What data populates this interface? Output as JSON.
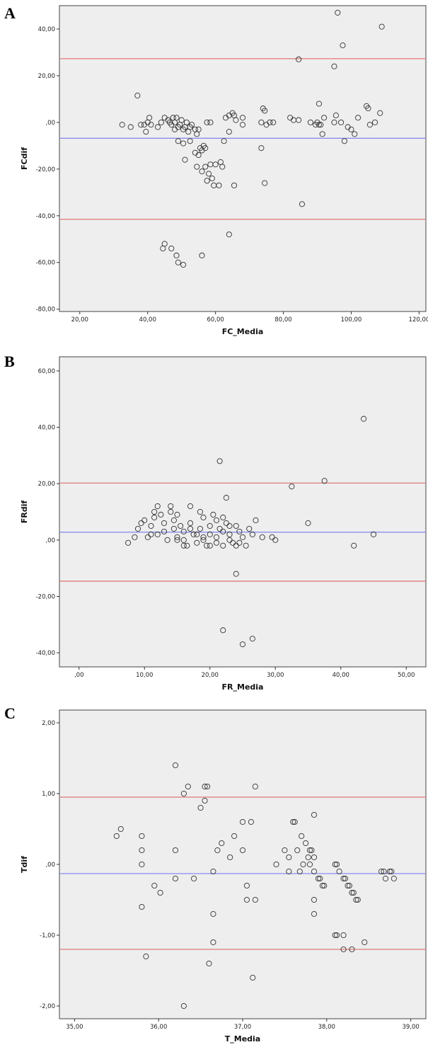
{
  "chart_data": [
    {
      "type": "scatter",
      "panel_label": "A",
      "xlabel": "FC_Media",
      "ylabel": "FCdif",
      "xlim": [
        14,
        122
      ],
      "ylim": [
        -81,
        50
      ],
      "x_ticks": [
        "20,00",
        "40,00",
        "60,00",
        "80,00",
        "100,00",
        "120,00"
      ],
      "y_ticks": [
        "40,00",
        "20,00",
        ",00",
        "-20,00",
        "-40,00",
        "-60,00",
        "-80,00"
      ],
      "x_tick_values": [
        20,
        40,
        60,
        80,
        100,
        120
      ],
      "y_tick_values": [
        40,
        20,
        0,
        -20,
        -40,
        -60,
        -80
      ],
      "reference_lines": [
        {
          "value": 27.3,
          "color": "#e07a7a"
        },
        {
          "value": -6.8,
          "color": "#8c8cf0"
        },
        {
          "value": -41.5,
          "color": "#e07a7a"
        }
      ],
      "points": [
        [
          32.5,
          -1
        ],
        [
          35,
          -2
        ],
        [
          37,
          11.5
        ],
        [
          38,
          -1
        ],
        [
          39,
          -1
        ],
        [
          39.5,
          -4
        ],
        [
          40,
          0
        ],
        [
          40.5,
          2
        ],
        [
          41,
          -1
        ],
        [
          43,
          -2
        ],
        [
          44,
          0
        ],
        [
          45,
          2
        ],
        [
          46,
          1
        ],
        [
          46.5,
          0
        ],
        [
          47,
          -1
        ],
        [
          47.5,
          2
        ],
        [
          48,
          0
        ],
        [
          48,
          -3
        ],
        [
          48.5,
          2
        ],
        [
          49,
          -2
        ],
        [
          49.5,
          -1
        ],
        [
          50,
          1
        ],
        [
          50.5,
          -3
        ],
        [
          51,
          -2
        ],
        [
          51.5,
          0
        ],
        [
          52,
          -4
        ],
        [
          52.5,
          -2
        ],
        [
          53,
          -1
        ],
        [
          54,
          -3
        ],
        [
          54.5,
          -5
        ],
        [
          55,
          -3
        ],
        [
          49,
          -8
        ],
        [
          50.5,
          -9
        ],
        [
          52.5,
          -8
        ],
        [
          51,
          -16
        ],
        [
          54,
          -13
        ],
        [
          54.5,
          -19
        ],
        [
          55,
          -14
        ],
        [
          55.5,
          -11
        ],
        [
          56,
          -12
        ],
        [
          56.5,
          -10
        ],
        [
          57,
          -11
        ],
        [
          56,
          -21
        ],
        [
          57,
          -19
        ],
        [
          57.5,
          -25
        ],
        [
          58,
          -22
        ],
        [
          58.5,
          -18
        ],
        [
          59,
          -24
        ],
        [
          59.5,
          -27
        ],
        [
          60,
          -18
        ],
        [
          61,
          -27
        ],
        [
          61.5,
          -17
        ],
        [
          62,
          -19
        ],
        [
          62.5,
          -8
        ],
        [
          57.5,
          0
        ],
        [
          58.5,
          0
        ],
        [
          63,
          2
        ],
        [
          64,
          3
        ],
        [
          64,
          -4
        ],
        [
          65,
          4
        ],
        [
          65.5,
          3
        ],
        [
          66,
          1
        ],
        [
          68,
          2
        ],
        [
          68,
          -1
        ],
        [
          73.5,
          0
        ],
        [
          73.5,
          -11
        ],
        [
          74,
          6
        ],
        [
          74.5,
          5
        ],
        [
          74.5,
          -26
        ],
        [
          75,
          -1
        ],
        [
          76,
          0
        ],
        [
          77,
          0
        ],
        [
          64,
          -48
        ],
        [
          65.5,
          -27
        ],
        [
          44.5,
          -54
        ],
        [
          45,
          -52
        ],
        [
          47,
          -54
        ],
        [
          48.5,
          -57
        ],
        [
          49,
          -60
        ],
        [
          50.5,
          -61
        ],
        [
          56,
          -57
        ],
        [
          82,
          2
        ],
        [
          83,
          1
        ],
        [
          84.5,
          1
        ],
        [
          84.5,
          27
        ],
        [
          85.5,
          -35
        ],
        [
          88,
          0
        ],
        [
          89.5,
          -1
        ],
        [
          90,
          0
        ],
        [
          90.5,
          -1
        ],
        [
          90.5,
          8
        ],
        [
          91,
          -1
        ],
        [
          91.5,
          -5
        ],
        [
          92,
          2
        ],
        [
          95,
          0
        ],
        [
          95,
          24
        ],
        [
          95.5,
          3
        ],
        [
          96,
          47
        ],
        [
          97,
          0
        ],
        [
          97.5,
          33
        ],
        [
          98,
          -8
        ],
        [
          99,
          -2
        ],
        [
          100,
          -3
        ],
        [
          101,
          -5
        ],
        [
          102,
          2
        ],
        [
          104.5,
          7
        ],
        [
          105,
          6
        ],
        [
          105.5,
          -1
        ],
        [
          107,
          0
        ],
        [
          108.5,
          4
        ],
        [
          109,
          41
        ]
      ]
    },
    {
      "type": "scatter",
      "panel_label": "B",
      "xlabel": "FR_Media",
      "ylabel": "FRdif",
      "xlim": [
        -3,
        53
      ],
      "ylim": [
        -45,
        65
      ],
      "x_ticks": [
        ",00",
        "10,00",
        "20,00",
        "30,00",
        "40,00",
        "50,00"
      ],
      "y_ticks": [
        "60,00",
        "40,00",
        "20,00",
        ",00",
        "-20,00",
        "-40,00"
      ],
      "x_tick_values": [
        0,
        10,
        20,
        30,
        40,
        50
      ],
      "y_tick_values": [
        60,
        40,
        20,
        0,
        -20,
        -40
      ],
      "reference_lines": [
        {
          "value": 20.2,
          "color": "#e07a7a"
        },
        {
          "value": 2.8,
          "color": "#8c8cf0"
        },
        {
          "value": -14.6,
          "color": "#e07a7a"
        }
      ],
      "points": [
        [
          7.5,
          -1
        ],
        [
          8.5,
          1
        ],
        [
          9,
          4
        ],
        [
          9.5,
          6
        ],
        [
          10,
          7
        ],
        [
          10.5,
          1
        ],
        [
          11,
          2
        ],
        [
          11,
          5
        ],
        [
          11.5,
          8
        ],
        [
          11.5,
          10
        ],
        [
          12,
          12
        ],
        [
          12,
          2
        ],
        [
          12.5,
          9
        ],
        [
          13,
          6
        ],
        [
          13,
          3
        ],
        [
          13.5,
          0
        ],
        [
          14,
          12
        ],
        [
          14,
          10
        ],
        [
          14.5,
          7
        ],
        [
          14.5,
          4
        ],
        [
          15,
          9
        ],
        [
          15,
          1
        ],
        [
          15.5,
          5
        ],
        [
          16,
          3
        ],
        [
          16,
          0
        ],
        [
          16.5,
          -2
        ],
        [
          17,
          12
        ],
        [
          17,
          6
        ],
        [
          17.5,
          2
        ],
        [
          18,
          -1
        ],
        [
          18.5,
          10
        ],
        [
          18.5,
          4
        ],
        [
          19,
          8
        ],
        [
          19,
          1
        ],
        [
          19.5,
          -2
        ],
        [
          20,
          5
        ],
        [
          20,
          2
        ],
        [
          20.5,
          9
        ],
        [
          21,
          7
        ],
        [
          21,
          -1
        ],
        [
          21.5,
          4
        ],
        [
          22,
          3
        ],
        [
          22,
          -2
        ],
        [
          22.5,
          6
        ],
        [
          23,
          2
        ],
        [
          23,
          0
        ],
        [
          23.5,
          -1
        ],
        [
          24,
          5
        ],
        [
          24.5,
          3
        ],
        [
          25,
          1
        ],
        [
          25.5,
          -2
        ],
        [
          26,
          4
        ],
        [
          26.5,
          2
        ],
        [
          27,
          7
        ],
        [
          28,
          1
        ],
        [
          15,
          0
        ],
        [
          16,
          -2
        ],
        [
          17,
          4
        ],
        [
          18,
          2
        ],
        [
          19,
          0
        ],
        [
          20,
          -2
        ],
        [
          21,
          1
        ],
        [
          22,
          8
        ],
        [
          23,
          5
        ],
        [
          24,
          -2
        ],
        [
          24.5,
          -1
        ],
        [
          21.5,
          28
        ],
        [
          22.5,
          15
        ],
        [
          24,
          -12
        ],
        [
          22,
          -32
        ],
        [
          25,
          -37
        ],
        [
          26.5,
          -35
        ],
        [
          29.5,
          1
        ],
        [
          30,
          0
        ],
        [
          32.5,
          19
        ],
        [
          35,
          6
        ],
        [
          37.5,
          21
        ],
        [
          42,
          -2
        ],
        [
          43.5,
          43
        ],
        [
          45,
          2
        ]
      ]
    },
    {
      "type": "scatter",
      "panel_label": "C",
      "xlabel": "T_Media",
      "ylabel": "Tdif",
      "xlim": [
        34.82,
        39.18
      ],
      "ylim": [
        -2.18,
        2.18
      ],
      "x_ticks": [
        "35,00",
        "36,00",
        "37,00",
        "38,00",
        "39,00"
      ],
      "y_ticks": [
        "2,00",
        "1,00",
        ",00",
        "-1,00",
        "-2,00"
      ],
      "x_tick_values": [
        35,
        36,
        37,
        38,
        39
      ],
      "y_tick_values": [
        2,
        1,
        0,
        -1,
        -2
      ],
      "reference_lines": [
        {
          "value": 0.95,
          "color": "#e07a7a"
        },
        {
          "value": -0.13,
          "color": "#8c8cf0"
        },
        {
          "value": -1.2,
          "color": "#e07a7a"
        }
      ],
      "points": [
        [
          35.5,
          0.4
        ],
        [
          35.55,
          0.5
        ],
        [
          35.8,
          0.4
        ],
        [
          35.8,
          0.2
        ],
        [
          35.8,
          0
        ],
        [
          35.8,
          -0.6
        ],
        [
          35.85,
          -1.3
        ],
        [
          35.95,
          -0.3
        ],
        [
          36.02,
          -0.4
        ],
        [
          36.2,
          0.2
        ],
        [
          36.2,
          -0.2
        ],
        [
          36.2,
          1.4
        ],
        [
          36.3,
          1.0
        ],
        [
          36.35,
          1.1
        ],
        [
          36.3,
          -2.0
        ],
        [
          36.42,
          -0.2
        ],
        [
          36.5,
          0.8
        ],
        [
          36.55,
          1.1
        ],
        [
          36.58,
          1.1
        ],
        [
          36.55,
          0.9
        ],
        [
          36.6,
          -1.4
        ],
        [
          36.65,
          -0.1
        ],
        [
          36.65,
          -0.7
        ],
        [
          36.65,
          -1.1
        ],
        [
          36.7,
          0.2
        ],
        [
          36.75,
          0.3
        ],
        [
          36.85,
          0.1
        ],
        [
          36.9,
          0.4
        ],
        [
          37.0,
          0.6
        ],
        [
          37.0,
          0.2
        ],
        [
          37.05,
          -0.3
        ],
        [
          37.05,
          -0.5
        ],
        [
          37.1,
          0.6
        ],
        [
          37.12,
          -1.6
        ],
        [
          37.15,
          1.1
        ],
        [
          37.15,
          -0.5
        ],
        [
          37.4,
          0
        ],
        [
          37.5,
          0.2
        ],
        [
          37.55,
          0.1
        ],
        [
          37.55,
          -0.1
        ],
        [
          37.6,
          0.6
        ],
        [
          37.62,
          0.6
        ],
        [
          37.65,
          0.2
        ],
        [
          37.68,
          -0.1
        ],
        [
          37.7,
          0.4
        ],
        [
          37.72,
          0
        ],
        [
          37.75,
          0.3
        ],
        [
          37.78,
          0.1
        ],
        [
          37.8,
          0.2
        ],
        [
          37.82,
          0.2
        ],
        [
          37.8,
          0
        ],
        [
          37.85,
          0.1
        ],
        [
          37.85,
          -0.1
        ],
        [
          37.85,
          0.7
        ],
        [
          37.85,
          -0.5
        ],
        [
          37.85,
          -0.7
        ],
        [
          37.9,
          -0.2
        ],
        [
          37.92,
          -0.2
        ],
        [
          37.95,
          -0.3
        ],
        [
          37.97,
          -0.3
        ],
        [
          38.1,
          0
        ],
        [
          38.12,
          0
        ],
        [
          38.15,
          -0.1
        ],
        [
          38.2,
          -0.2
        ],
        [
          38.22,
          -0.2
        ],
        [
          38.25,
          -0.3
        ],
        [
          38.27,
          -0.3
        ],
        [
          38.3,
          -0.4
        ],
        [
          38.32,
          -0.4
        ],
        [
          38.35,
          -0.5
        ],
        [
          38.37,
          -0.5
        ],
        [
          38.1,
          -1.0
        ],
        [
          38.12,
          -1.0
        ],
        [
          38.2,
          -1.0
        ],
        [
          38.2,
          -1.2
        ],
        [
          38.3,
          -1.2
        ],
        [
          38.45,
          -1.1
        ],
        [
          38.65,
          -0.1
        ],
        [
          38.68,
          -0.1
        ],
        [
          38.7,
          -0.2
        ],
        [
          38.75,
          -0.1
        ],
        [
          38.77,
          -0.1
        ],
        [
          38.8,
          -0.2
        ]
      ]
    }
  ]
}
